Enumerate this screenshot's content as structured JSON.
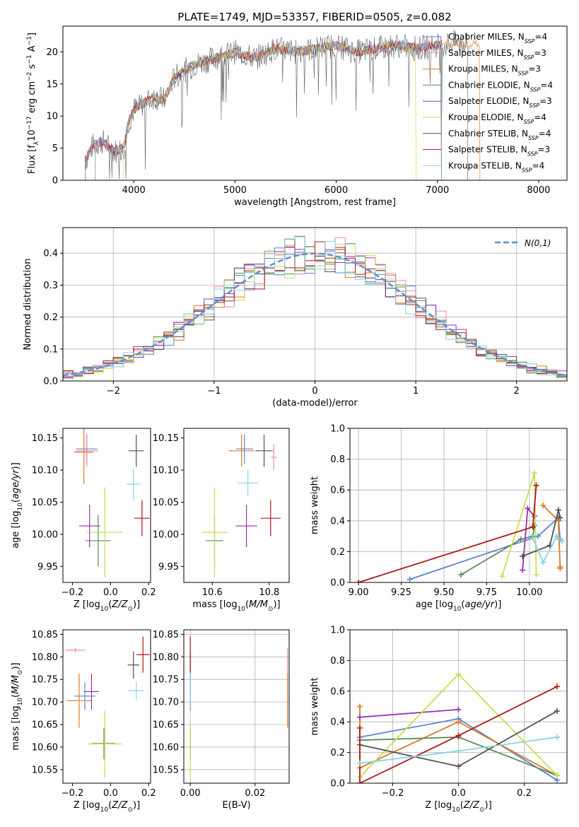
{
  "figure": {
    "title": "PLATE=1749, MJD=53357, FIBERID=0505, z=0.082"
  },
  "model_labels": [
    "Chabrier MILES",
    "Salpeter MILES",
    "Kroupa MILES",
    "Chabrier ELODIE",
    "Salpeter ELODIE",
    "Kroupa ELODIE",
    "Chabrier STELIB",
    "Salpeter STELIB",
    "Kroupa STELIB"
  ],
  "model_nssp": [
    4,
    3,
    3,
    4,
    3,
    4,
    4,
    3,
    4
  ],
  "model_colors": [
    "#5b84d6",
    "#ee86b6",
    "#e07820",
    "#5a8a5a",
    "#9a30b0",
    "#ccdc50",
    "#505050",
    "#b01818",
    "#86d6de"
  ],
  "nssp_prefix": "N",
  "nssp_sub": "SSP",
  "chart_data": [
    {
      "id": "spectrum",
      "type": "line",
      "title": "PLATE=1749, MJD=53357, FIBERID=0505, z=0.082",
      "xlabel": "wavelength [Angstrom, rest frame]",
      "ylabel": "Flux [f_λ 10^-17 erg cm^-2 s^-1 A^-1]",
      "xlim": [
        3300,
        8280
      ],
      "ylim": [
        0,
        24
      ],
      "xticks": [
        4000,
        5000,
        6000,
        7000,
        8000
      ],
      "yticks": [
        0,
        5,
        10,
        15,
        20
      ],
      "grid": false,
      "legend": "upper-right",
      "spectrum_sketch_x": [
        3520,
        3600,
        3700,
        3800,
        3900,
        3950,
        4000,
        4100,
        4200,
        4300,
        4400,
        4500,
        4600,
        4800,
        5000,
        5200,
        5400,
        5600,
        5800,
        6000,
        6200,
        6400,
        6600,
        6800,
        7000,
        7200,
        7420
      ],
      "spectrum_sketch_y": [
        3,
        5.5,
        6,
        4.5,
        5,
        9,
        11,
        12,
        13,
        12.5,
        16,
        17,
        18,
        19,
        20,
        19,
        20.5,
        20,
        20.5,
        21,
        20,
        20.5,
        21,
        20.5,
        21,
        21.5,
        21
      ]
    },
    {
      "id": "residuals",
      "type": "histogram",
      "xlabel": "(data-model)/error",
      "ylabel": "Normed distribution",
      "xlim": [
        -2.5,
        2.5
      ],
      "ylim": [
        0,
        0.48
      ],
      "xticks": [
        -2,
        -1,
        0,
        1,
        2
      ],
      "yticks": [
        0.0,
        0.1,
        0.2,
        0.3,
        0.4
      ],
      "grid": true,
      "legend": "upper-right",
      "reference_label": "N(0,1)",
      "reference_color": "#5b8fd6"
    },
    {
      "id": "age-vs-Z",
      "type": "scatter",
      "xlabel": "Z [log10(Z/Z_sun)]",
      "ylabel": "age [log10(age/yr)]",
      "xlim": [
        -0.25,
        0.21
      ],
      "ylim": [
        9.925,
        10.165
      ],
      "xticks": [
        -0.2,
        0.0,
        0.2
      ],
      "yticks": [
        9.95,
        10.0,
        10.05,
        10.1,
        10.15
      ],
      "grid": false,
      "points": [
        {
          "x": -0.125,
          "y": 10.133,
          "xerr": 0.055,
          "yerr": 0.023,
          "color": "#5b84d6"
        },
        {
          "x": -0.125,
          "y": 10.13,
          "xerr": 0.06,
          "yerr": 0.025,
          "color": "#ee86b6"
        },
        {
          "x": -0.14,
          "y": 10.128,
          "xerr": 0.05,
          "yerr": 0.05,
          "color": "#e07820"
        },
        {
          "x": -0.065,
          "y": 9.99,
          "xerr": 0.065,
          "yerr": 0.04,
          "color": "#5a8a5a"
        },
        {
          "x": -0.11,
          "y": 10.013,
          "xerr": 0.055,
          "yerr": 0.033,
          "color": "#9a30b0"
        },
        {
          "x": -0.03,
          "y": 10.003,
          "xerr": 0.095,
          "yerr": 0.07,
          "color": "#ccdc50"
        },
        {
          "x": 0.135,
          "y": 10.13,
          "xerr": 0.04,
          "yerr": 0.025,
          "color": "#505050"
        },
        {
          "x": 0.165,
          "y": 10.025,
          "xerr": 0.04,
          "yerr": 0.028,
          "color": "#b01818"
        },
        {
          "x": 0.12,
          "y": 10.078,
          "xerr": 0.035,
          "yerr": 0.025,
          "color": "#86d6de"
        }
      ]
    },
    {
      "id": "age-vs-mass",
      "type": "scatter",
      "xlabel": "mass [log10(M/M_sun)]",
      "ylabel": "",
      "xlim": [
        10.5,
        10.87
      ],
      "ylim": [
        9.925,
        10.165
      ],
      "xticks": [
        10.6,
        10.8
      ],
      "yticks": [
        9.95,
        10.0,
        10.05,
        10.1,
        10.15
      ],
      "grid": false,
      "points": [
        {
          "x": 10.713,
          "y": 10.133,
          "xerr": 0.03,
          "yerr": 0.023,
          "color": "#5b84d6"
        },
        {
          "x": 10.816,
          "y": 10.12,
          "xerr": 0.01,
          "yerr": 0.02,
          "color": "#ee86b6"
        },
        {
          "x": 10.703,
          "y": 10.13,
          "xerr": 0.045,
          "yerr": 0.025,
          "color": "#e07820"
        },
        {
          "x": 10.608,
          "y": 9.99,
          "xerr": 0.03,
          "yerr": 0.04,
          "color": "#5a8a5a"
        },
        {
          "x": 10.72,
          "y": 10.013,
          "xerr": 0.038,
          "yerr": 0.033,
          "color": "#9a30b0"
        },
        {
          "x": 10.608,
          "y": 10.003,
          "xerr": 0.045,
          "yerr": 0.07,
          "color": "#ccdc50"
        },
        {
          "x": 10.782,
          "y": 10.13,
          "xerr": 0.03,
          "yerr": 0.025,
          "color": "#505050"
        },
        {
          "x": 10.805,
          "y": 10.025,
          "xerr": 0.035,
          "yerr": 0.028,
          "color": "#b01818"
        },
        {
          "x": 10.725,
          "y": 10.08,
          "xerr": 0.035,
          "yerr": 0.02,
          "color": "#86d6de"
        }
      ]
    },
    {
      "id": "weight-vs-age",
      "type": "line",
      "xlabel": "age [log10(age/yr)]",
      "ylabel": "mass weight",
      "xlim": [
        8.95,
        10.22
      ],
      "ylim": [
        0,
        1
      ],
      "xticks": [
        9.0,
        9.25,
        9.5,
        9.75,
        10.0
      ],
      "yticks": [
        0.0,
        0.2,
        0.4,
        0.6,
        0.8,
        1.0
      ],
      "grid": true,
      "series": [
        {
          "color": "#5b84d6",
          "x": [
            9.3,
            10.05,
            10.17,
            10.18
          ],
          "y": [
            0.02,
            0.3,
            0.42,
            0.28
          ]
        },
        {
          "color": "#e07820",
          "x": [
            10.08,
            10.17,
            10.18,
            10.18
          ],
          "y": [
            0.5,
            0.4,
            0.1,
            0.09
          ]
        },
        {
          "color": "#5a8a5a",
          "x": [
            9.6,
            9.95,
            10.02,
            10.03
          ],
          "y": [
            0.05,
            0.28,
            0.3,
            0.37
          ]
        },
        {
          "color": "#9a30b0",
          "x": [
            9.96,
            9.99,
            10.03
          ],
          "y": [
            0.08,
            0.48,
            0.43
          ]
        },
        {
          "color": "#ccdc50",
          "x": [
            9.84,
            10.03,
            10.04
          ],
          "y": [
            0.04,
            0.71,
            0.05
          ]
        },
        {
          "color": "#505050",
          "x": [
            9.96,
            10.12,
            10.17,
            10.18
          ],
          "y": [
            0.17,
            0.24,
            0.47,
            0.42
          ]
        },
        {
          "color": "#b01818",
          "x": [
            9.0,
            10.02,
            10.04
          ],
          "y": [
            0.0,
            0.36,
            0.63
          ]
        },
        {
          "color": "#86d6de",
          "x": [
            10.02,
            10.08,
            10.16,
            10.19
          ],
          "y": [
            0.29,
            0.13,
            0.3,
            0.27
          ]
        }
      ]
    },
    {
      "id": "mass-vs-Z",
      "type": "scatter",
      "xlabel": "Z [log10(Z/Z_sun)]",
      "ylabel": "mass [log10(M/M_sun)]",
      "xlim": [
        -0.25,
        0.21
      ],
      "ylim": [
        10.52,
        10.86
      ],
      "xticks": [
        -0.2,
        0.0,
        0.2
      ],
      "yticks": [
        10.55,
        10.6,
        10.65,
        10.7,
        10.75,
        10.8,
        10.85
      ],
      "grid": false,
      "points": [
        {
          "x": -0.135,
          "y": 10.713,
          "xerr": 0.055,
          "yerr": 0.03,
          "color": "#5b84d6"
        },
        {
          "x": -0.185,
          "y": 10.815,
          "xerr": 0.05,
          "yerr": 0.005,
          "color": "#ee86b6"
        },
        {
          "x": -0.165,
          "y": 10.703,
          "xerr": 0.065,
          "yerr": 0.06,
          "color": "#e07820"
        },
        {
          "x": -0.035,
          "y": 10.608,
          "xerr": 0.06,
          "yerr": 0.035,
          "color": "#5a8a5a"
        },
        {
          "x": -0.1,
          "y": 10.723,
          "xerr": 0.04,
          "yerr": 0.04,
          "color": "#9a30b0"
        },
        {
          "x": -0.03,
          "y": 10.607,
          "xerr": 0.09,
          "yerr": 0.075,
          "color": "#ccdc50"
        },
        {
          "x": 0.12,
          "y": 10.782,
          "xerr": 0.03,
          "yerr": 0.03,
          "color": "#505050"
        },
        {
          "x": 0.17,
          "y": 10.805,
          "xerr": 0.035,
          "yerr": 0.04,
          "color": "#b01818"
        },
        {
          "x": 0.135,
          "y": 10.725,
          "xerr": 0.04,
          "yerr": 0.02,
          "color": "#86d6de"
        }
      ]
    },
    {
      "id": "mass-vs-ebv",
      "type": "scatter",
      "xlabel": "E(B-V)",
      "ylabel": "",
      "xlim": [
        -0.002,
        0.0305
      ],
      "ylim": [
        10.52,
        10.86
      ],
      "xticks": [
        0.0,
        0.02
      ],
      "yticks": [
        10.55,
        10.6,
        10.65,
        10.7,
        10.75,
        10.8,
        10.85
      ],
      "grid": true,
      "points": [
        {
          "x": 0.0,
          "y": 10.713,
          "xerr": 0,
          "yerr": 0.03,
          "color": "#5b84d6"
        },
        {
          "x": 0.03,
          "y": 10.79,
          "xerr": 0,
          "yerr": 0.03,
          "color": "#ee86b6"
        },
        {
          "x": 0.03,
          "y": 10.703,
          "xerr": 0,
          "yerr": 0.06,
          "color": "#e07820"
        },
        {
          "x": 0.0,
          "y": 10.608,
          "xerr": 0,
          "yerr": 0.035,
          "color": "#5a8a5a"
        },
        {
          "x": 0.0,
          "y": 10.723,
          "xerr": 0,
          "yerr": 0.04,
          "color": "#9a30b0"
        },
        {
          "x": 0.0,
          "y": 10.59,
          "xerr": 0,
          "yerr": 0.06,
          "color": "#ccdc50"
        },
        {
          "x": 0.0,
          "y": 10.782,
          "xerr": 0,
          "yerr": 0.03,
          "color": "#505050"
        },
        {
          "x": 0.0,
          "y": 10.805,
          "xerr": 0,
          "yerr": 0.04,
          "color": "#b01818"
        },
        {
          "x": 0.0,
          "y": 10.725,
          "xerr": 0,
          "yerr": 0.04,
          "color": "#86d6de"
        }
      ]
    },
    {
      "id": "weight-vs-Z",
      "type": "line",
      "xlabel": "Z [log10(Z/Z_sun)]",
      "ylabel": "mass weight",
      "xlim": [
        -0.33,
        0.33
      ],
      "ylim": [
        0,
        1
      ],
      "xticks": [
        -0.2,
        0.0,
        0.2
      ],
      "yticks": [
        0.0,
        0.2,
        0.4,
        0.6,
        0.8,
        1.0
      ],
      "grid": true,
      "series": [
        {
          "color": "#5b84d6",
          "x": [
            -0.3,
            0.0,
            0.3
          ],
          "y": [
            0.3,
            0.42,
            0.02
          ]
        },
        {
          "color": "#e07820",
          "x": [
            -0.3,
            -0.3,
            0.0,
            0.3
          ],
          "y": [
            0.5,
            0.1,
            0.4,
            0.05
          ]
        },
        {
          "color": "#5a8a5a",
          "x": [
            -0.3,
            0.0,
            0.3
          ],
          "y": [
            0.28,
            0.3,
            0.05
          ]
        },
        {
          "color": "#9a30b0",
          "x": [
            -0.3,
            0.0
          ],
          "y": [
            0.43,
            0.48
          ]
        },
        {
          "color": "#ccdc50",
          "x": [
            -0.3,
            0.0,
            0.3
          ],
          "y": [
            0.04,
            0.71,
            0.05
          ]
        },
        {
          "color": "#505050",
          "x": [
            -0.3,
            0.0,
            0.3
          ],
          "y": [
            0.25,
            0.11,
            0.47
          ]
        },
        {
          "color": "#b01818",
          "x": [
            -0.3,
            -0.3,
            0.0,
            0.3
          ],
          "y": [
            0.36,
            0.0,
            0.31,
            0.63
          ]
        },
        {
          "color": "#86d6de",
          "x": [
            -0.3,
            0.0,
            0.3
          ],
          "y": [
            0.13,
            0.21,
            0.3
          ]
        }
      ]
    }
  ]
}
